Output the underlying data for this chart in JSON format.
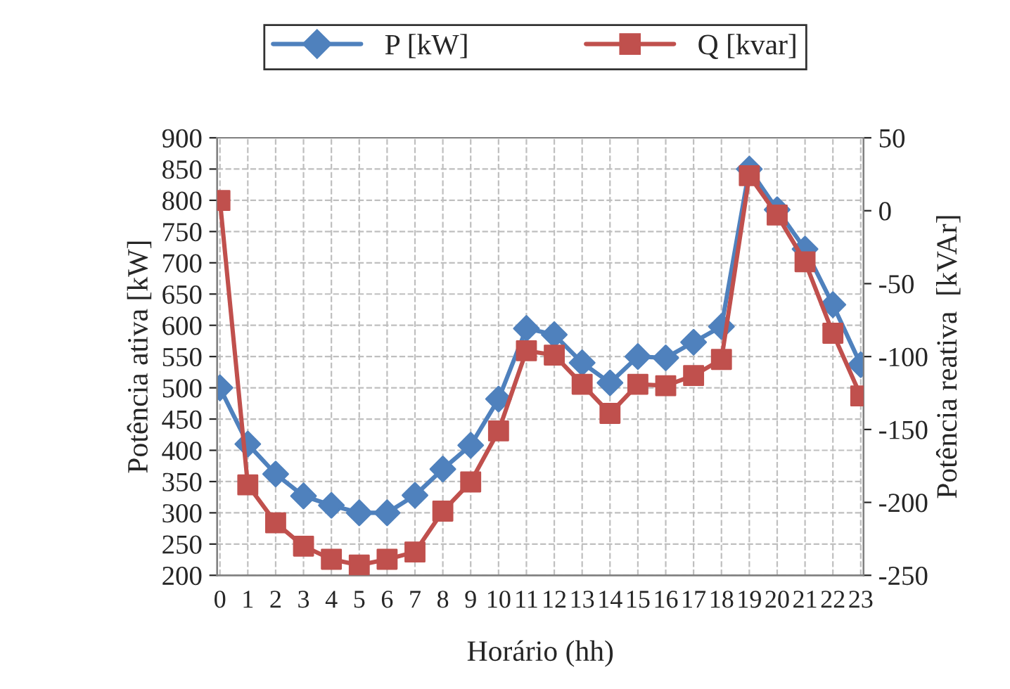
{
  "chart_data": {
    "type": "line",
    "xlabel": "Horário (hh)",
    "ylabel": "Potência ativa [kW]",
    "y2label": "Potência reativa  [kVAr]",
    "categories": [
      "0",
      "1",
      "2",
      "3",
      "4",
      "5",
      "6",
      "7",
      "8",
      "9",
      "10",
      "11",
      "12",
      "13",
      "14",
      "15",
      "16",
      "17",
      "18",
      "19",
      "20",
      "21",
      "22",
      "23"
    ],
    "series": [
      {
        "name": "P [kW]",
        "color": "#4f81bd",
        "marker": "diamond",
        "values": [
          500,
          410,
          362,
          327,
          312,
          300,
          300,
          328,
          370,
          408,
          482,
          595,
          585,
          540,
          508,
          550,
          548,
          573,
          598,
          850,
          785,
          722,
          633,
          537
        ]
      },
      {
        "name": "Q [kvar]",
        "color": "#c0504d",
        "marker": "square",
        "axis": "y2",
        "values": [
          7,
          -188,
          -214,
          -230,
          -239,
          -243,
          -239,
          -234,
          -206,
          -186,
          -151,
          -96,
          -99,
          -119,
          -139,
          -119,
          -120,
          -113,
          -102,
          24,
          -3,
          -35,
          -84,
          -127
        ]
      }
    ],
    "ylim": [
      200,
      900
    ],
    "yticks": [
      200,
      250,
      300,
      350,
      400,
      450,
      500,
      550,
      600,
      650,
      700,
      750,
      800,
      850,
      900
    ],
    "y2lim": [
      -250,
      50
    ],
    "y2ticks": [
      -250,
      -200,
      -150,
      -100,
      -50,
      0,
      50
    ],
    "grid": true,
    "legend": "top",
    "line_style": "solid"
  }
}
